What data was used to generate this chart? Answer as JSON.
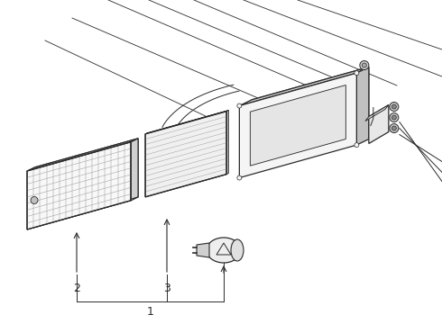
{
  "bg_color": "#ffffff",
  "line_color": "#2a2a2a",
  "figsize": [
    4.9,
    3.6
  ],
  "dpi": 100,
  "label1": "1",
  "label2": "2",
  "label3": "3"
}
